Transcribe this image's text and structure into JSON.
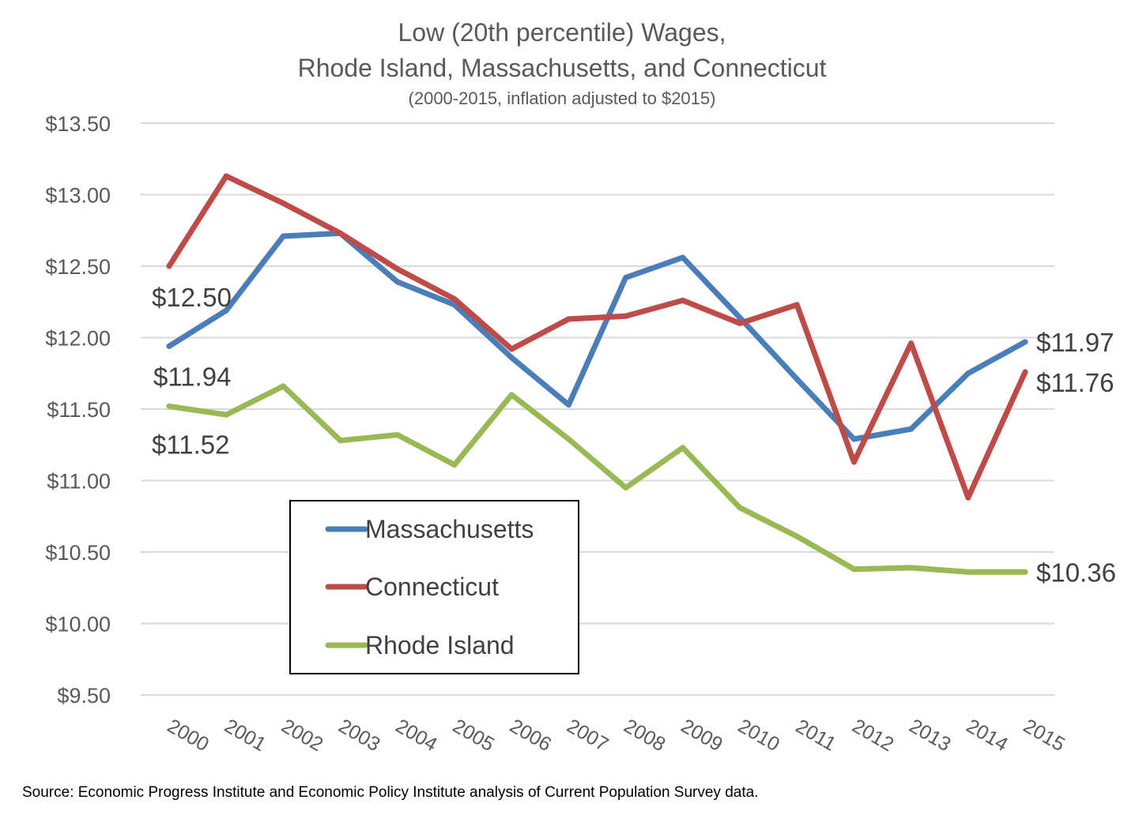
{
  "chart_data": {
    "type": "line",
    "title": "Low (20th percentile) Wages,",
    "title_line2": "Rhode Island, Massachusetts, and Connecticut",
    "subtitle": "(2000-2015, inflation adjusted to $2015)",
    "xlabel": "",
    "ylabel": "",
    "ylim": [
      9.5,
      13.5
    ],
    "yticks": [
      {
        "value": 13.5,
        "label": "$13.50"
      },
      {
        "value": 13.0,
        "label": "$13.00"
      },
      {
        "value": 12.5,
        "label": "$12.50"
      },
      {
        "value": 12.0,
        "label": "$12.00"
      },
      {
        "value": 11.5,
        "label": "$11.50"
      },
      {
        "value": 11.0,
        "label": "$11.00"
      },
      {
        "value": 10.5,
        "label": "$10.50"
      },
      {
        "value": 10.0,
        "label": "$10.00"
      },
      {
        "value": 9.5,
        "label": "$9.50"
      }
    ],
    "categories": [
      "2000",
      "2001",
      "2002",
      "2003",
      "2004",
      "2005",
      "2006",
      "2007",
      "2008",
      "2009",
      "2010",
      "2011",
      "2012",
      "2013",
      "2014",
      "2015"
    ],
    "grid": true,
    "legend_position": "center-left",
    "series": [
      {
        "name": "Massachusetts",
        "color": "#4a7ebb",
        "values": [
          11.94,
          12.19,
          12.71,
          12.73,
          12.39,
          12.23,
          11.86,
          11.53,
          12.42,
          12.56,
          12.14,
          11.71,
          11.29,
          11.36,
          11.75,
          11.97
        ]
      },
      {
        "name": "Connecticut",
        "color": "#be4b48",
        "values": [
          12.5,
          13.13,
          12.94,
          12.73,
          12.48,
          12.27,
          11.92,
          12.13,
          12.15,
          12.26,
          12.1,
          12.23,
          11.13,
          11.96,
          10.88,
          11.76
        ]
      },
      {
        "name": "Rhode Island",
        "color": "#98b954",
        "values": [
          11.52,
          11.46,
          11.66,
          11.28,
          11.32,
          11.11,
          11.6,
          11.29,
          10.95,
          11.23,
          10.81,
          10.61,
          10.38,
          10.39,
          10.36,
          10.36
        ]
      }
    ],
    "annotations": [
      {
        "series": "Connecticut",
        "index": 0,
        "text": "$12.50"
      },
      {
        "series": "Massachusetts",
        "index": 0,
        "text": "$11.94"
      },
      {
        "series": "Rhode Island",
        "index": 0,
        "text": "$11.52"
      },
      {
        "series": "Massachusetts",
        "index": 15,
        "text": "$11.97"
      },
      {
        "series": "Connecticut",
        "index": 15,
        "text": "$11.76"
      },
      {
        "series": "Rhode Island",
        "index": 15,
        "text": "$10.36"
      }
    ],
    "source": "Source: Economic Progress Institute and Economic Policy Institute analysis of Current Population Survey data."
  }
}
